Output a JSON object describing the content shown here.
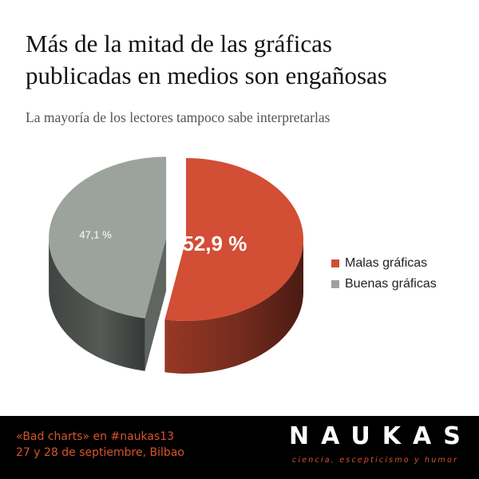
{
  "header": {
    "title_line1": "Más de la mitad de las gráficas",
    "title_line2": "publicadas en medios son engañosas",
    "subtitle": "La mayoría de los lectores tampoco sabe interpretarlas"
  },
  "chart_data": {
    "type": "pie",
    "three_d": true,
    "legend_position": "right",
    "slices": [
      {
        "name": "Malas gráficas",
        "value": 52.9,
        "label": "52,9 %",
        "color": "#d24e35",
        "exploded": false
      },
      {
        "name": "Buenas gráficas",
        "value": 47.1,
        "label": "47,1 %",
        "color": "#9ba39c",
        "exploded": true
      }
    ]
  },
  "legend": {
    "items": [
      {
        "label": "Malas gráficas",
        "color": "#d24e35"
      },
      {
        "label": "Buenas gráficas",
        "color": "#9ba39c"
      }
    ]
  },
  "footer": {
    "event_line1": "«Bad charts» en #naukas13",
    "event_line2": "27 y 28 de septiembre, Bilbao",
    "brand": "NAUKAS",
    "tagline": "ciencia, escepticismo y humor"
  }
}
